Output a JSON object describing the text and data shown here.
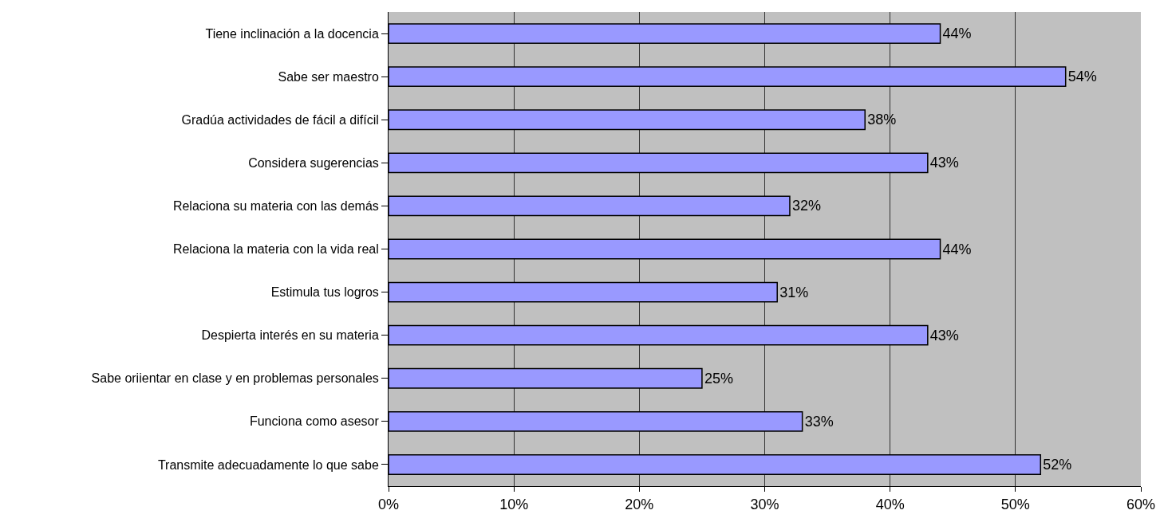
{
  "chart_data": {
    "type": "bar",
    "orientation": "horizontal",
    "categories": [
      "Tiene inclinación a la docencia",
      "Sabe ser maestro",
      "Gradúa actividades de fácil a difícil",
      "Considera sugerencias",
      "Relaciona su materia con las demás",
      "Relaciona la materia con la vida real",
      "Estimula tus logros",
      "Despierta interés en su materia",
      "Sabe oriientar en clase y en problemas personales",
      "Funciona como asesor",
      "Transmite adecuadamente lo que sabe"
    ],
    "values": [
      44,
      54,
      38,
      43,
      32,
      44,
      31,
      43,
      25,
      33,
      52
    ],
    "value_labels": [
      "44%",
      "54%",
      "38%",
      "43%",
      "32%",
      "44%",
      "31%",
      "43%",
      "25%",
      "33%",
      "52%"
    ],
    "color": "#9999ff",
    "xlim": [
      0,
      60
    ],
    "xticks": [
      {
        "value": 0,
        "label": "0%"
      },
      {
        "value": 10,
        "label": "10%"
      },
      {
        "value": 20,
        "label": "20%"
      },
      {
        "value": 30,
        "label": "30%"
      },
      {
        "value": 40,
        "label": "40%"
      },
      {
        "value": 50,
        "label": "50%"
      },
      {
        "value": 60,
        "label": "60%"
      }
    ],
    "grid": "x"
  }
}
